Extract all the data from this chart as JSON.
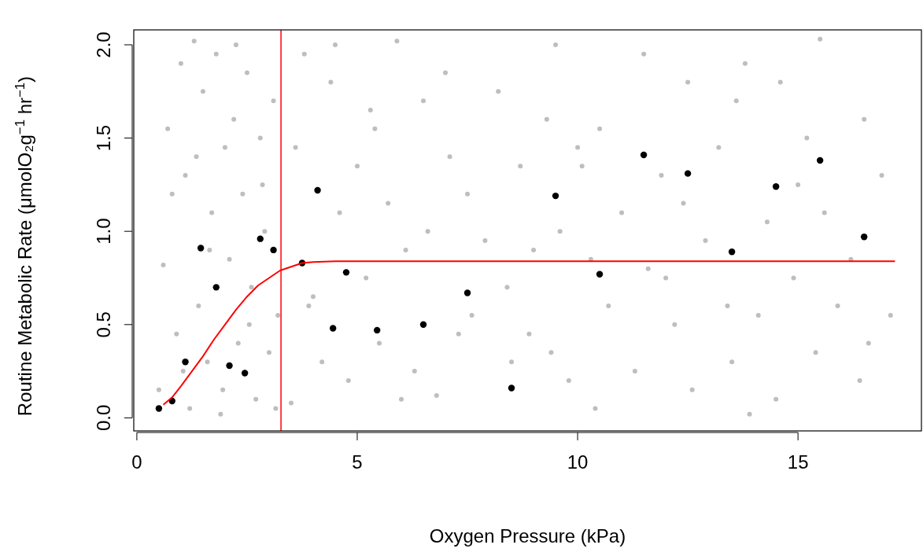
{
  "chart_data": {
    "type": "scatter",
    "xlabel": "Oxygen Pressure (kPa)",
    "ylabel": "Routine Metabolic Rate (μmolO₂g$^{−1}$ hr$^{−1}$)",
    "xlim": [
      -0.07,
      17.8
    ],
    "ylim": [
      -0.07,
      2.08
    ],
    "xticks": [
      0,
      5,
      10,
      15
    ],
    "yticks": [
      {
        "value": 0,
        "label": "0.0"
      },
      {
        "value": 0.5,
        "label": "0.5"
      },
      {
        "value": 1,
        "label": "1.0"
      },
      {
        "value": 1.5,
        "label": "1.5"
      },
      {
        "value": 2,
        "label": "2.0"
      }
    ],
    "grid": false,
    "marker": "circle",
    "ref_lines": [
      {
        "axis": "x",
        "value": 3.27,
        "color": "#ff0000"
      }
    ],
    "series": [
      {
        "color": "#bebebe",
        "x": [
          0.5,
          0.6,
          0.7,
          0.9,
          1.0,
          1.1,
          1.2,
          1.3,
          1.4,
          1.5,
          1.6,
          1.7,
          1.8,
          1.9,
          2.0,
          2.1,
          2.2,
          2.3,
          2.4,
          2.5,
          2.6,
          2.7,
          2.8,
          2.9,
          3.0,
          3.1,
          3.2,
          0.8,
          1.05,
          1.35,
          1.65,
          1.95,
          2.25,
          2.55,
          2.85,
          3.15,
          3.5,
          3.6,
          3.8,
          4.0,
          4.2,
          4.4,
          4.6,
          4.8,
          5.0,
          5.2,
          5.4,
          5.5,
          5.7,
          5.9,
          6.1,
          6.3,
          6.5,
          6.6,
          6.8,
          7.0,
          7.3,
          7.5,
          7.6,
          7.9,
          8.2,
          8.4,
          8.5,
          8.7,
          9.0,
          9.3,
          9.4,
          9.5,
          9.6,
          9.8,
          10.0,
          10.3,
          10.4,
          10.5,
          10.7,
          11.0,
          11.3,
          11.5,
          11.6,
          11.9,
          12.2,
          12.4,
          12.5,
          12.6,
          12.9,
          13.2,
          13.4,
          13.5,
          13.6,
          13.8,
          14.1,
          14.3,
          14.5,
          14.6,
          14.9,
          15.2,
          15.4,
          15.5,
          15.6,
          15.9,
          16.2,
          16.4,
          16.5,
          16.6,
          16.9,
          17.1,
          3.9,
          4.5,
          5.3,
          6.0,
          7.1,
          8.9,
          10.1,
          12.0,
          13.9,
          15.0
        ],
        "values": [
          0.15,
          0.82,
          1.55,
          0.45,
          1.9,
          1.3,
          0.05,
          2.02,
          0.6,
          1.75,
          0.3,
          1.1,
          1.95,
          0.02,
          1.45,
          0.85,
          1.6,
          0.4,
          1.2,
          1.85,
          0.7,
          0.1,
          1.5,
          1.0,
          0.35,
          1.7,
          0.55,
          1.2,
          0.25,
          1.4,
          0.9,
          0.15,
          2.0,
          0.5,
          1.25,
          0.05,
          0.08,
          1.45,
          1.95,
          0.65,
          0.3,
          1.8,
          1.1,
          0.2,
          1.35,
          0.75,
          1.55,
          0.4,
          1.15,
          2.02,
          0.9,
          0.25,
          1.7,
          1.0,
          0.12,
          1.85,
          0.45,
          1.2,
          0.55,
          0.95,
          1.75,
          0.7,
          0.3,
          1.35,
          0.9,
          1.6,
          0.35,
          2.0,
          1.0,
          0.2,
          1.45,
          0.85,
          0.05,
          1.55,
          0.6,
          1.1,
          0.25,
          1.95,
          0.8,
          1.3,
          0.5,
          1.15,
          1.8,
          0.15,
          0.95,
          1.45,
          0.6,
          0.3,
          1.7,
          1.9,
          0.55,
          1.05,
          0.1,
          1.8,
          0.75,
          1.5,
          0.35,
          2.03,
          1.1,
          0.6,
          0.85,
          0.2,
          1.6,
          0.4,
          1.3,
          0.55,
          0.6,
          2.0,
          1.65,
          0.1,
          1.4,
          0.45,
          1.35,
          0.75,
          0.02,
          1.25
        ]
      },
      {
        "color": "#000000",
        "x": [
          0.5,
          0.8,
          1.1,
          1.45,
          1.8,
          2.1,
          2.45,
          2.8,
          3.1,
          3.75,
          4.1,
          4.45,
          4.75,
          5.45,
          6.5,
          7.5,
          8.5,
          9.5,
          10.5,
          11.5,
          12.5,
          13.5,
          14.5,
          15.5,
          16.5
        ],
        "values": [
          0.05,
          0.09,
          0.3,
          0.91,
          0.7,
          0.28,
          0.24,
          0.96,
          0.9,
          0.83,
          1.22,
          0.48,
          0.78,
          0.47,
          0.5,
          0.67,
          0.16,
          1.19,
          0.77,
          1.41,
          1.31,
          0.89,
          1.24,
          1.38,
          0.97
        ]
      },
      {
        "type": "line",
        "color": "#ff0000",
        "marker": "none",
        "x": [
          0.6,
          0.8,
          1.0,
          1.25,
          1.5,
          1.75,
          2.0,
          2.25,
          2.5,
          2.75,
          3.0,
          3.25,
          3.5,
          3.75,
          4.0,
          4.5,
          5.0,
          10.0,
          17.2
        ],
        "values": [
          0.07,
          0.11,
          0.17,
          0.25,
          0.33,
          0.42,
          0.5,
          0.58,
          0.65,
          0.71,
          0.75,
          0.79,
          0.81,
          0.83,
          0.835,
          0.84,
          0.84,
          0.84,
          0.84
        ]
      }
    ]
  }
}
